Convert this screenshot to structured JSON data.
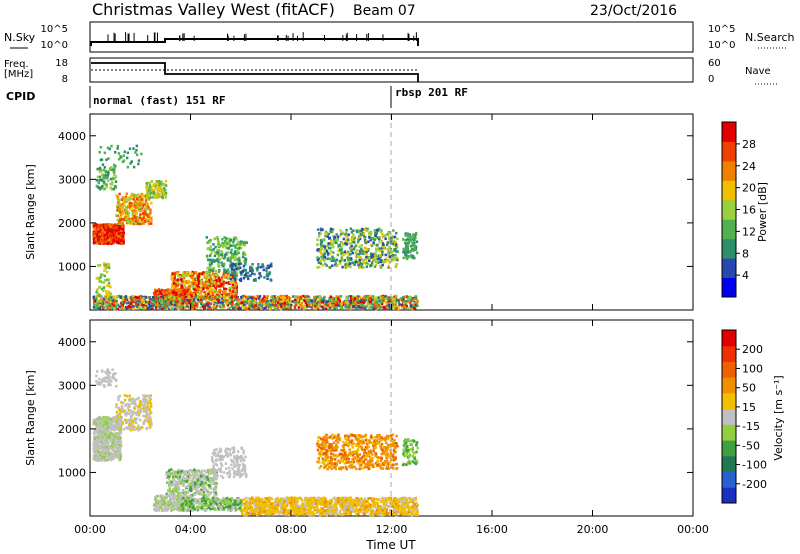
{
  "header": {
    "title": "Christmas Valley West (fitACF)",
    "beam": "Beam 07",
    "date": "23/Oct/2016"
  },
  "noise_panel": {
    "left_label": "N.Sky",
    "right_label": "N.Search",
    "left_ticks": [
      "10^5",
      "10^0"
    ],
    "right_ticks": [
      "10^5",
      "10^0"
    ]
  },
  "freq_panel": {
    "left_label_top": "Freq.",
    "left_label_bottom": "[MHz]",
    "right_label": "Nave",
    "left_ticks": [
      "18",
      "8"
    ],
    "right_ticks": [
      "60",
      "0"
    ]
  },
  "cpid_panel": {
    "label": "CPID",
    "modes": [
      "normal (fast) 151 RF",
      "rbsp 201 RF"
    ]
  },
  "x_axis": {
    "title": "Time UT",
    "ticks": [
      "00:00",
      "04:00",
      "08:00",
      "12:00",
      "16:00",
      "20:00",
      "00:00"
    ]
  },
  "power_panel": {
    "ylabel": "Slant Range [km]",
    "yticks": [
      "4000",
      "3000",
      "2000",
      "1000"
    ],
    "colorbar_label": "Power [dB]",
    "colorbar_ticks": [
      "28",
      "24",
      "20",
      "16",
      "12",
      "8",
      "4"
    ],
    "colorbar_colors": [
      "#0000ee",
      "#2848b0",
      "#2d8f6a",
      "#52b050",
      "#9ad040",
      "#f0c000",
      "#f08000",
      "#f04000",
      "#e00000"
    ]
  },
  "velocity_panel": {
    "ylabel": "Slant Range [km]",
    "yticks": [
      "4000",
      "3000",
      "2000",
      "1000"
    ],
    "colorbar_label": "Velocity [m s⁻¹]",
    "colorbar_ticks": [
      "200",
      "100",
      "50",
      "15",
      "-15",
      "-50",
      "-100",
      "-200"
    ],
    "colorbar_colors": [
      "#1a30c0",
      "#2860d0",
      "#207850",
      "#40a040",
      "#90d040",
      "#c0c0c0",
      "#f0c000",
      "#f09000",
      "#f06000",
      "#f03000",
      "#e00000"
    ]
  },
  "chart_data": [
    {
      "type": "line",
      "title": "N.Sky",
      "x": [
        "00:00",
        "13:00"
      ],
      "description_series": [
        {
          "name": "N.Sky",
          "values": []
        }
      ],
      "yscale": "log",
      "ylim_labels": [
        "10^0",
        "10^5"
      ]
    },
    {
      "type": "line",
      "title": "Freq.",
      "ylabel": "[MHz]",
      "x": [
        "00:00",
        "03:00",
        "13:00"
      ],
      "series": [
        {
          "name": "Freq.",
          "values": [
            14.3,
            12.5,
            12.5
          ]
        },
        {
          "name": "Nave",
          "values": [
            25,
            25,
            25
          ]
        }
      ],
      "ylim": [
        8,
        18
      ]
    },
    {
      "type": "heatmap",
      "title": "Power [dB]",
      "xlabel": "Time UT",
      "ylabel": "Slant Range [km]",
      "xlim": [
        "00:00",
        "24:00"
      ],
      "ylim": [
        0,
        4500
      ],
      "colorbar": {
        "label": "Power [dB]",
        "ticks": [
          4,
          8,
          12,
          16,
          20,
          24,
          28
        ]
      },
      "data_extent_time": [
        "00:00",
        "13:00"
      ]
    },
    {
      "type": "heatmap",
      "title": "Velocity",
      "xlabel": "Time UT",
      "ylabel": "Slant Range [km]",
      "xlim": [
        "00:00",
        "24:00"
      ],
      "ylim": [
        0,
        4500
      ],
      "colorbar": {
        "label": "Velocity [m s⁻¹]",
        "ticks": [
          -200,
          -100,
          -50,
          -15,
          15,
          50,
          100,
          200
        ]
      },
      "data_extent_time": [
        "00:00",
        "13:00"
      ]
    }
  ]
}
